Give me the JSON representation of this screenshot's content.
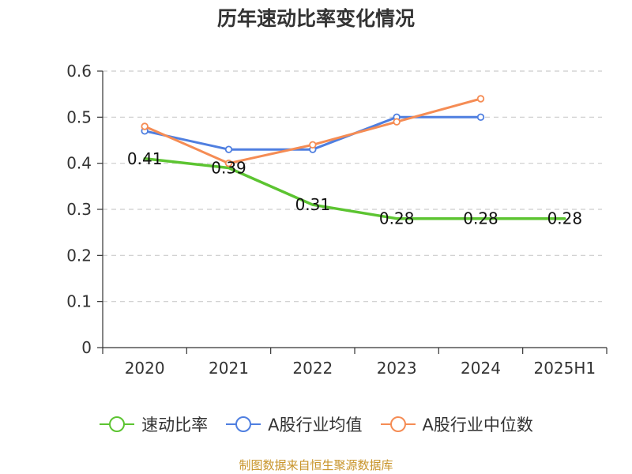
{
  "chart_data": {
    "type": "line",
    "title": "历年速动比率变化情况",
    "categories": [
      "2020",
      "2021",
      "2022",
      "2023",
      "2024",
      "2025H1"
    ],
    "ylim": [
      0,
      0.6
    ],
    "yticks": [
      "0",
      "0.1",
      "0.2",
      "0.3",
      "0.4",
      "0.5",
      "0.6"
    ],
    "grid": true,
    "legend_position": "bottom",
    "series": [
      {
        "name": "速动比率",
        "color": "#5cc431",
        "values": [
          0.41,
          0.39,
          0.31,
          0.28,
          0.28,
          0.28
        ],
        "labels": [
          "0.41",
          "0.39",
          "0.31",
          "0.28",
          "0.28",
          "0.28"
        ]
      },
      {
        "name": "A股行业均值",
        "color": "#4f7fe0",
        "values": [
          0.47,
          0.43,
          0.43,
          0.5,
          0.5,
          null
        ]
      },
      {
        "name": "A股行业中位数",
        "color": "#f58c54",
        "values": [
          0.48,
          0.4,
          0.44,
          0.49,
          0.54,
          null
        ]
      }
    ]
  },
  "footer": "制图数据来自恒生聚源数据库"
}
